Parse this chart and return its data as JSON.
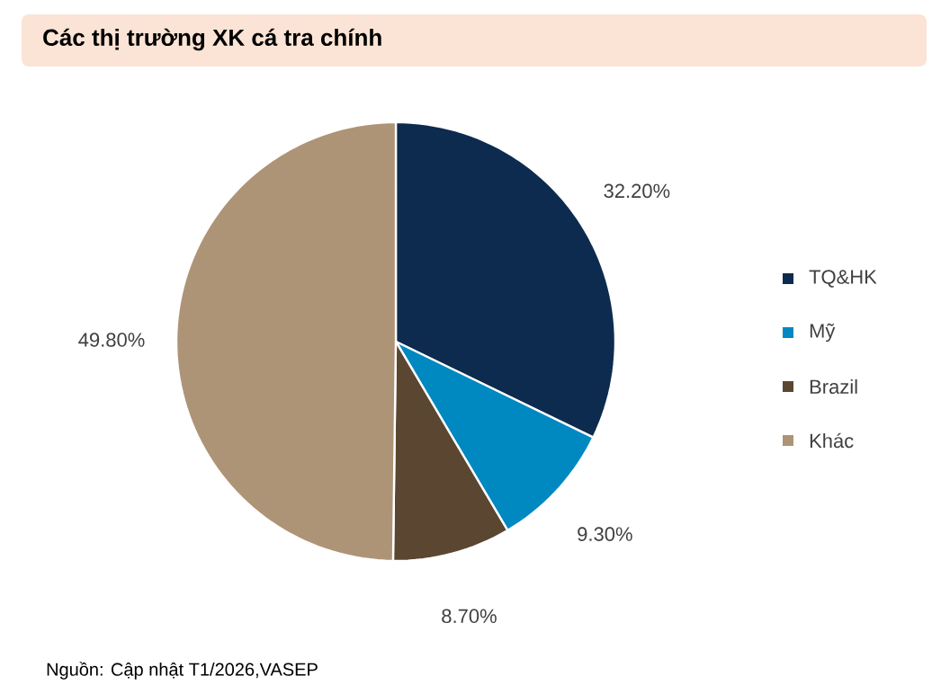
{
  "chart_data": {
    "type": "pie",
    "title": "Các thị trường XK cá tra chính",
    "categories": [
      "TQ&HK",
      "Mỹ",
      "Brazil",
      "Khác"
    ],
    "values": [
      32.2,
      9.3,
      8.7,
      49.8
    ],
    "colors": [
      "#0d2b4e",
      "#0088c0",
      "#5a4631",
      "#ae9476"
    ],
    "value_labels": [
      "32.20%",
      "9.30%",
      "8.70%",
      "49.80%"
    ],
    "legend": "right",
    "annotations": [
      "Nguồn: Cập nhật T1/2026,VASEP"
    ]
  }
}
